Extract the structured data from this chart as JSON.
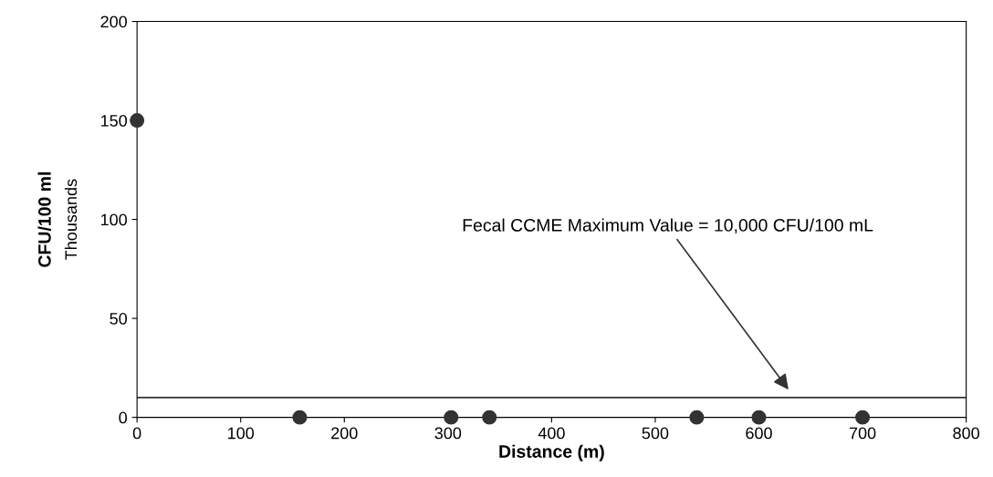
{
  "chart_data": {
    "type": "scatter",
    "xlabel": "Distance (m)",
    "ylabel": "CFU/100 ml",
    "x": [
      0,
      157,
      303,
      340,
      540,
      600,
      700
    ],
    "series": [
      {
        "color": "#333333",
        "values": [
          150,
          0,
          0,
          0,
          0,
          0,
          0
        ]
      }
    ],
    "marker": "circle",
    "xlim": [
      0,
      800
    ],
    "xticks": [
      0,
      100,
      200,
      300,
      400,
      500,
      600,
      700,
      800
    ],
    "ylim": [
      0,
      200
    ],
    "yticks": [
      0,
      50,
      100,
      150,
      200
    ],
    "grid": false,
    "ref_lines": [
      {
        "axis": "y",
        "value": 10,
        "color": "#333333"
      }
    ],
    "annotations": [
      "Fecal CCME Maximum Value = 10,000 CFU/100 mL",
      "Thousands"
    ]
  }
}
